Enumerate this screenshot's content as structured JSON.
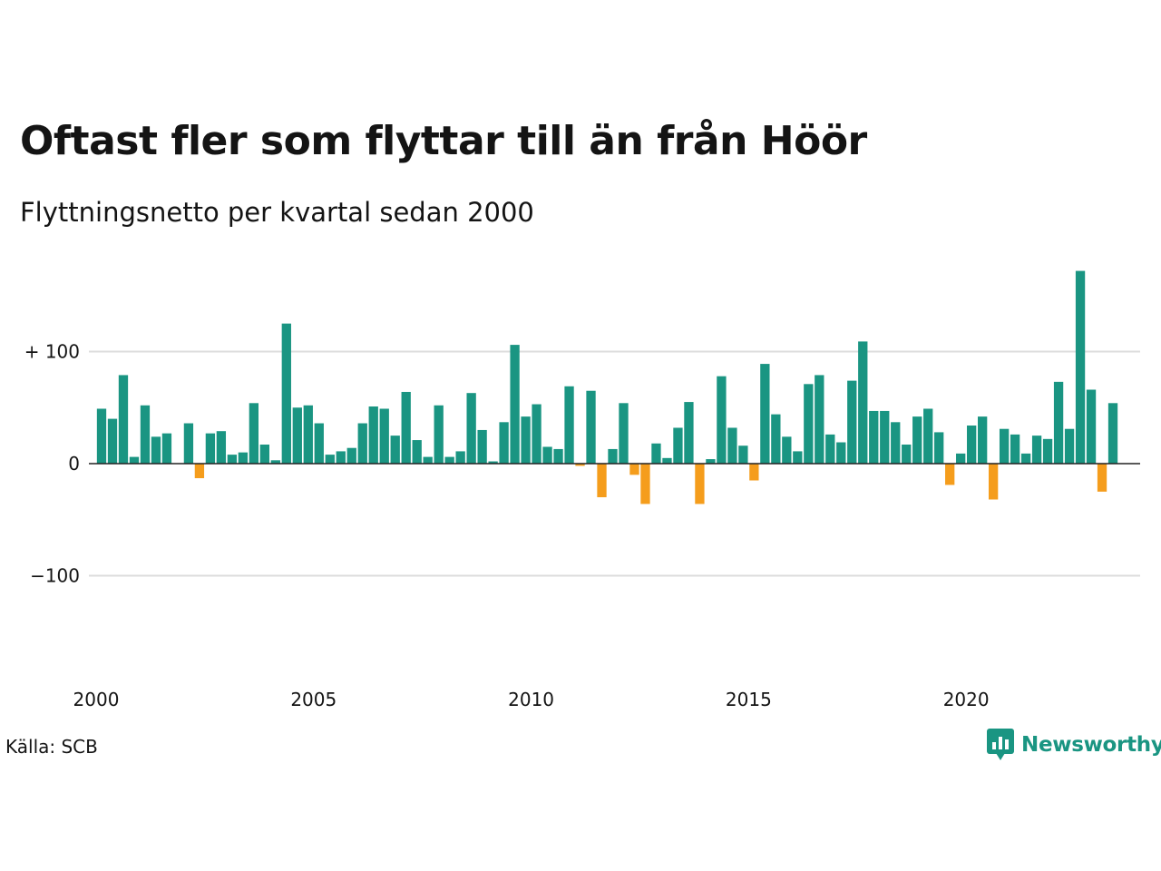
{
  "title": "Oftast fler som flyttar till än från Höör",
  "subtitle": "Flyttningsnetto per kvartal sedan 2000",
  "source": "Källa: SCB",
  "brand": {
    "name": "Newsworthy",
    "logo_icon": "newsworthy-chat-chart-icon"
  },
  "colors": {
    "positive": "#1a9582",
    "negative": "#f59d1c",
    "grid": "#dddddd",
    "zero_line": "#222222",
    "text": "#141414"
  },
  "chart_data": {
    "type": "bar",
    "title": "Oftast fler som flyttar till än från Höör",
    "subtitle": "Flyttningsnetto per kvartal sedan 2000",
    "xlabel": "",
    "ylabel": "",
    "ylim": [
      -190,
      175
    ],
    "xlim": [
      2000,
      2024
    ],
    "y_ticks": [
      {
        "value": 100,
        "label": "+ 100"
      },
      {
        "value": 0,
        "label": "0"
      },
      {
        "value": -100,
        "label": "−100"
      }
    ],
    "x_ticks": [
      {
        "value": 2000,
        "label": "2000"
      },
      {
        "value": 2005,
        "label": "2005"
      },
      {
        "value": 2010,
        "label": "2010"
      },
      {
        "value": 2015,
        "label": "2015"
      },
      {
        "value": 2020,
        "label": "2020"
      }
    ],
    "grid": true,
    "legend": "none",
    "series": [
      {
        "x": [
          "2000 Q1",
          "2000 Q2",
          "2000 Q3",
          "2000 Q4",
          "2001 Q1",
          "2001 Q2",
          "2001 Q3",
          "2001 Q4",
          "2002 Q1",
          "2002 Q2",
          "2002 Q3",
          "2002 Q4",
          "2003 Q1",
          "2003 Q2",
          "2003 Q3",
          "2003 Q4",
          "2004 Q1",
          "2004 Q2",
          "2004 Q3",
          "2004 Q4",
          "2005 Q1",
          "2005 Q2",
          "2005 Q3",
          "2005 Q4",
          "2006 Q1",
          "2006 Q2",
          "2006 Q3",
          "2006 Q4",
          "2007 Q1",
          "2007 Q2",
          "2007 Q3",
          "2007 Q4",
          "2008 Q1",
          "2008 Q2",
          "2008 Q3",
          "2008 Q4",
          "2009 Q1",
          "2009 Q2",
          "2009 Q3",
          "2009 Q4",
          "2010 Q1",
          "2010 Q2",
          "2010 Q3",
          "2010 Q4",
          "2011 Q1",
          "2011 Q2",
          "2011 Q3",
          "2011 Q4",
          "2012 Q1",
          "2012 Q2",
          "2012 Q3",
          "2012 Q4",
          "2013 Q1",
          "2013 Q2",
          "2013 Q3",
          "2013 Q4",
          "2014 Q1",
          "2014 Q2",
          "2014 Q3",
          "2014 Q4",
          "2015 Q1",
          "2015 Q2",
          "2015 Q3",
          "2015 Q4",
          "2016 Q1",
          "2016 Q2",
          "2016 Q3",
          "2016 Q4",
          "2017 Q1",
          "2017 Q2",
          "2017 Q3",
          "2017 Q4",
          "2018 Q1",
          "2018 Q2",
          "2018 Q3",
          "2018 Q4",
          "2019 Q1",
          "2019 Q2",
          "2019 Q3",
          "2019 Q4",
          "2020 Q1",
          "2020 Q2",
          "2020 Q3",
          "2020 Q4",
          "2021 Q1",
          "2021 Q2",
          "2021 Q3",
          "2021 Q4",
          "2022 Q1",
          "2022 Q2",
          "2022 Q3",
          "2022 Q4",
          "2023 Q1",
          "2023 Q2",
          "2023 Q3",
          "2023 Q4"
        ],
        "values": [
          49,
          40,
          79,
          6,
          52,
          24,
          27,
          0,
          36,
          -13,
          27,
          29,
          8,
          10,
          54,
          17,
          3,
          125,
          50,
          52,
          36,
          8,
          11,
          14,
          36,
          51,
          49,
          25,
          64,
          21,
          6,
          52,
          6,
          11,
          63,
          30,
          2,
          37,
          106,
          42,
          53,
          15,
          13,
          69,
          -2,
          65,
          -30,
          13,
          54,
          -10,
          -36,
          18,
          5,
          32,
          55,
          -36,
          4,
          78,
          32,
          16,
          -15,
          89,
          44,
          24,
          11,
          71,
          79,
          26,
          19,
          74,
          109,
          47,
          47,
          37,
          17,
          42,
          49,
          28,
          -19,
          9,
          34,
          42,
          -32,
          31,
          26,
          9,
          25,
          22,
          73,
          31,
          172,
          66,
          -25,
          54,
          0,
          0
        ]
      }
    ]
  }
}
